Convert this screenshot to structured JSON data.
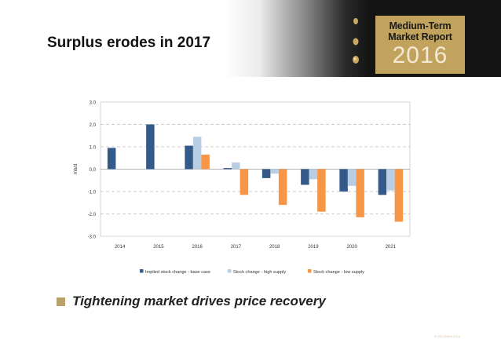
{
  "slide": {
    "title": "Surplus erodes in 2017",
    "bullet": "Tightening market drives price recovery",
    "copyright": "© OECD/IEA 2016"
  },
  "logo": {
    "line1": "Medium-Term",
    "line2": "Market Report",
    "year": "2016"
  },
  "colors": {
    "base_case": "#345a8a",
    "high_supply": "#b9cde5",
    "low_supply": "#f79646",
    "grid": "#9a9a9a",
    "logo_gold": "#c2a35e",
    "bullet": "#b8a26a"
  },
  "chart_data": {
    "type": "bar",
    "title": "",
    "xlabel": "",
    "ylabel": "mb/d",
    "ylim": [
      -3.0,
      3.0
    ],
    "yticks": [
      "3.0",
      "2.0",
      "1.0",
      "0.0",
      "-1.0",
      "-2.0",
      "-3.0"
    ],
    "categories": [
      "2014",
      "2015",
      "2016",
      "2017",
      "2018",
      "2019",
      "2020",
      "2021"
    ],
    "grid": true,
    "legend_position": "bottom",
    "series": [
      {
        "name": "Implied stock change - base case",
        "color": "#345a8a",
        "values": [
          0.95,
          2.0,
          1.05,
          0.05,
          -0.4,
          -0.7,
          -1.0,
          -1.15
        ]
      },
      {
        "name": "Stock change - high supply",
        "color": "#b9cde5",
        "values": [
          null,
          null,
          1.45,
          0.3,
          -0.2,
          -0.45,
          -0.75,
          -0.95
        ]
      },
      {
        "name": "Stock change - low supply",
        "color": "#f79646",
        "values": [
          null,
          null,
          0.65,
          -1.15,
          -1.6,
          -1.9,
          -2.15,
          -2.35
        ]
      }
    ]
  }
}
